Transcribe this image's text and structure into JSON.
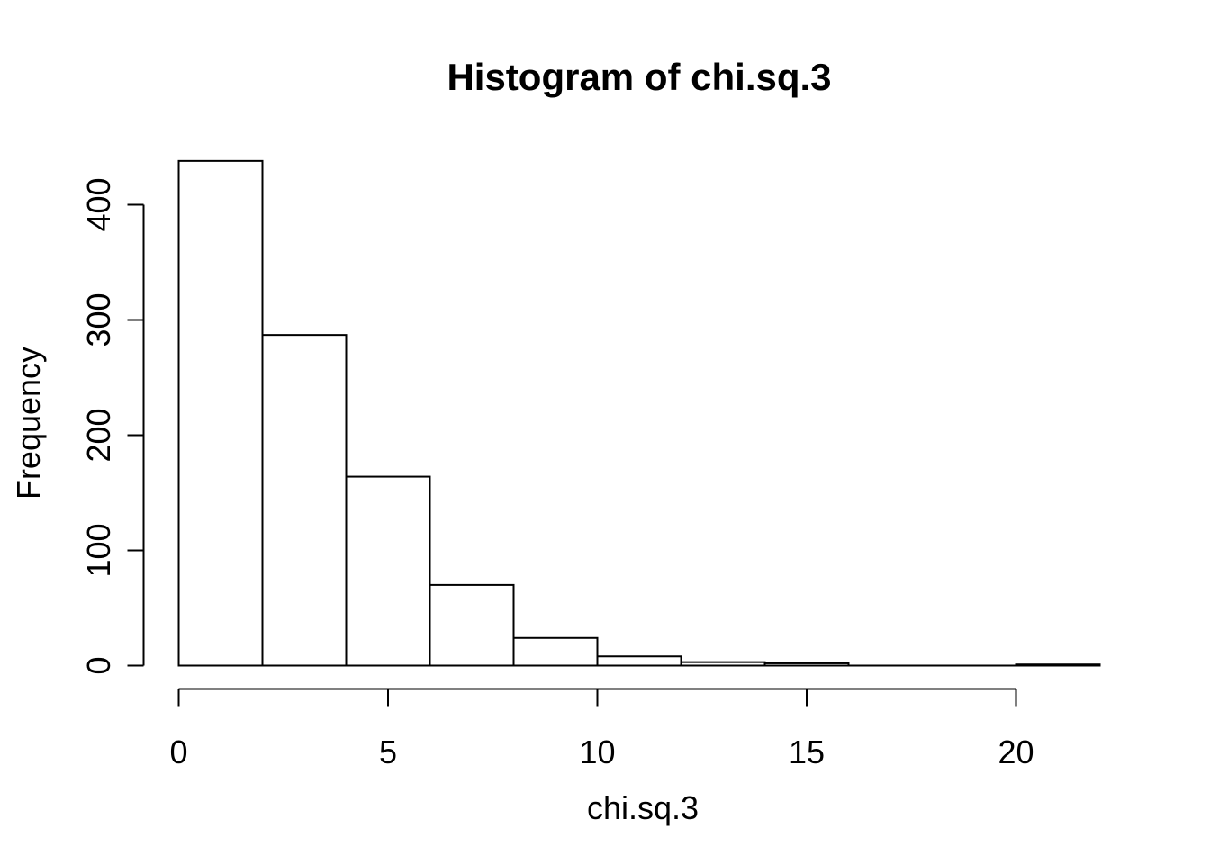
{
  "chart_data": {
    "type": "bar",
    "subtype": "histogram",
    "title": "Histogram of chi.sq.3",
    "xlabel": "chi.sq.3",
    "ylabel": "Frequency",
    "breaks": [
      0,
      2,
      4,
      6,
      8,
      10,
      12,
      14,
      16,
      18,
      20,
      22
    ],
    "counts": [
      438,
      287,
      164,
      70,
      24,
      8,
      3,
      2,
      0,
      0,
      1
    ],
    "x_ticks": [
      0,
      5,
      10,
      15,
      20
    ],
    "y_ticks": [
      0,
      100,
      200,
      300,
      400
    ],
    "x_axis_range": [
      0,
      20
    ],
    "y_axis_range": [
      0,
      400
    ],
    "xlim": [
      0,
      22
    ],
    "grid": "off",
    "legend": "none",
    "bar_fill": "#ffffff",
    "bar_stroke": "#000000",
    "axis_color": "#000000",
    "background": "#ffffff"
  }
}
